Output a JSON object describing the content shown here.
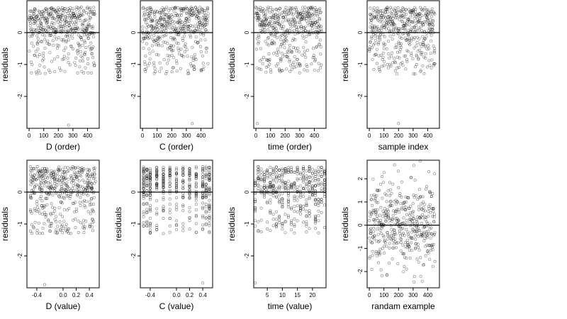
{
  "chart_data": [
    {
      "type": "scatter",
      "xlabel": "D (order)",
      "ylabel": "residuals",
      "xlim": [
        -15,
        480
      ],
      "ylim": [
        -3,
        1
      ],
      "xticks": [
        0,
        100,
        200,
        300,
        400
      ],
      "xticklabels": [
        "0",
        "100",
        "200",
        "300",
        "400"
      ],
      "yticks": [
        0,
        -1,
        -2
      ],
      "yticklabels": [
        "0",
        "-1",
        "-2"
      ],
      "hline": 0,
      "n": 450,
      "x_kind": "index",
      "pattern": "order",
      "seed": 11,
      "outliers": [
        {
          "x": 270,
          "y": -2.9
        }
      ]
    },
    {
      "type": "scatter",
      "xlabel": "C (order)",
      "ylabel": "residuals",
      "xlim": [
        -15,
        480
      ],
      "ylim": [
        -3,
        1
      ],
      "xticks": [
        0,
        100,
        200,
        300,
        400
      ],
      "xticklabels": [
        "0",
        "100",
        "200",
        "300",
        "400"
      ],
      "yticks": [
        0,
        -1,
        -2
      ],
      "yticklabels": [
        "0",
        "-1",
        "-2"
      ],
      "hline": 0,
      "n": 450,
      "x_kind": "index",
      "pattern": "order",
      "seed": 23,
      "outliers": [
        {
          "x": 340,
          "y": -2.85
        }
      ]
    },
    {
      "type": "scatter",
      "xlabel": "time (order)",
      "ylabel": "residuals",
      "xlim": [
        -15,
        480
      ],
      "ylim": [
        -3,
        1
      ],
      "xticks": [
        0,
        100,
        200,
        300,
        400
      ],
      "xticklabels": [
        "0",
        "100",
        "200",
        "300",
        "400"
      ],
      "yticks": [
        0,
        -1,
        -2
      ],
      "yticklabels": [
        "0",
        "-1",
        "-2"
      ],
      "hline": 0,
      "n": 450,
      "x_kind": "index",
      "pattern": "order",
      "seed": 37,
      "outliers": [
        {
          "x": 10,
          "y": -2.85
        }
      ]
    },
    {
      "type": "scatter",
      "xlabel": "sample index",
      "ylabel": "residuals",
      "xlim": [
        -15,
        480
      ],
      "ylim": [
        -3,
        1
      ],
      "xticks": [
        0,
        100,
        200,
        300,
        400
      ],
      "xticklabels": [
        "0",
        "100",
        "200",
        "300",
        "400"
      ],
      "yticks": [
        0,
        -1,
        -2
      ],
      "yticklabels": [
        "0",
        "-1",
        "-2"
      ],
      "hline": 0,
      "n": 450,
      "x_kind": "index",
      "pattern": "order",
      "seed": 41,
      "outliers": [
        {
          "x": 200,
          "y": -2.85
        }
      ]
    },
    {
      "type": "scatter",
      "xlabel": "D (value)",
      "ylabel": "residuals",
      "xlim": [
        -0.55,
        0.55
      ],
      "ylim": [
        -3,
        1
      ],
      "xticks": [
        -0.4,
        0.0,
        0.2,
        0.4
      ],
      "xticklabels": [
        "-0.4",
        "0.0",
        "0.2",
        "0.4"
      ],
      "yticks": [
        0,
        -1,
        -2
      ],
      "yticklabels": [
        "0",
        "-1",
        "-2"
      ],
      "hline": 0,
      "n": 450,
      "x_kind": "uniform",
      "x_range": [
        -0.5,
        0.5
      ],
      "pattern": "value",
      "seed": 53,
      "outliers": [
        {
          "x": -0.28,
          "y": -2.9
        }
      ]
    },
    {
      "type": "scatter",
      "xlabel": "C (value)",
      "ylabel": "residuals",
      "xlim": [
        -0.55,
        0.55
      ],
      "ylim": [
        -3,
        1
      ],
      "xticks": [
        -0.4,
        0.0,
        0.2,
        0.4
      ],
      "xticklabels": [
        "-0.4",
        "0.0",
        "0.2",
        "0.4"
      ],
      "yticks": [
        0,
        -1,
        -2
      ],
      "yticklabels": [
        "0",
        "-1",
        "-2"
      ],
      "hline": 0,
      "n": 450,
      "x_kind": "discrete",
      "x_levels": [
        -0.5,
        -0.45,
        -0.4,
        -0.3,
        -0.2,
        -0.1,
        0.0,
        0.1,
        0.2,
        0.3,
        0.4,
        0.45,
        0.5
      ],
      "pattern": "value",
      "seed": 67,
      "outliers": [
        {
          "x": 0.4,
          "y": -2.85
        }
      ]
    },
    {
      "type": "scatter",
      "xlabel": "time (value)",
      "ylabel": "residuals",
      "xlim": [
        0.5,
        24.5
      ],
      "ylim": [
        -3,
        1
      ],
      "xticks": [
        5,
        10,
        15,
        20
      ],
      "xticklabels": [
        "5",
        "10",
        "15",
        "20"
      ],
      "yticks": [
        0,
        -1,
        -2
      ],
      "yticklabels": [
        "0",
        "-1",
        "-2"
      ],
      "hline": 0,
      "n": 450,
      "x_kind": "discrete",
      "x_levels": [
        1,
        2,
        3,
        4,
        5,
        6,
        7,
        8,
        9,
        10,
        11,
        12,
        13,
        14,
        15,
        16,
        17,
        18,
        19,
        20,
        21,
        22,
        23,
        24
      ],
      "pattern": "value",
      "seed": 79,
      "outliers": [
        {
          "x": 1,
          "y": -2.85
        }
      ]
    },
    {
      "type": "scatter",
      "xlabel": "randam example",
      "ylabel": "residuals",
      "xlim": [
        -15,
        480
      ],
      "ylim": [
        -2.7,
        2.8
      ],
      "xticks": [
        0,
        100,
        200,
        300,
        400
      ],
      "xticklabels": [
        "0",
        "100",
        "200",
        "300",
        "400"
      ],
      "yticks": [
        2,
        1,
        0,
        -1,
        -2
      ],
      "yticklabels": [
        "2",
        "1",
        "0",
        "-1",
        "-2"
      ],
      "hline": 0,
      "n": 450,
      "x_kind": "index",
      "pattern": "normal",
      "seed": 97,
      "outliers": []
    }
  ]
}
